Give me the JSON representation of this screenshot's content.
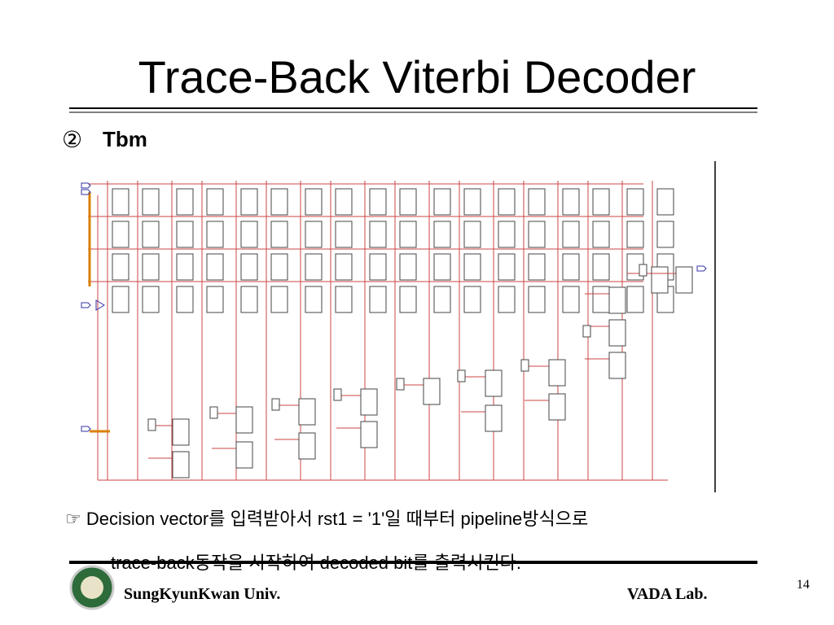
{
  "slide": {
    "title": "Trace-Back Viterbi Decoder",
    "subtitle_marker": "②",
    "subtitle": "Tbm",
    "caption": [
      "☞ Decision vector를 입력받아서 rst1 = '1'일 때부터 pipeline방식으로",
      "trace-back동작을 시작하여 decoded bit를 출력시킨다."
    ],
    "footer": {
      "left": "SungKyunKwan Univ.",
      "right": "VADA Lab.",
      "page": "14"
    }
  }
}
